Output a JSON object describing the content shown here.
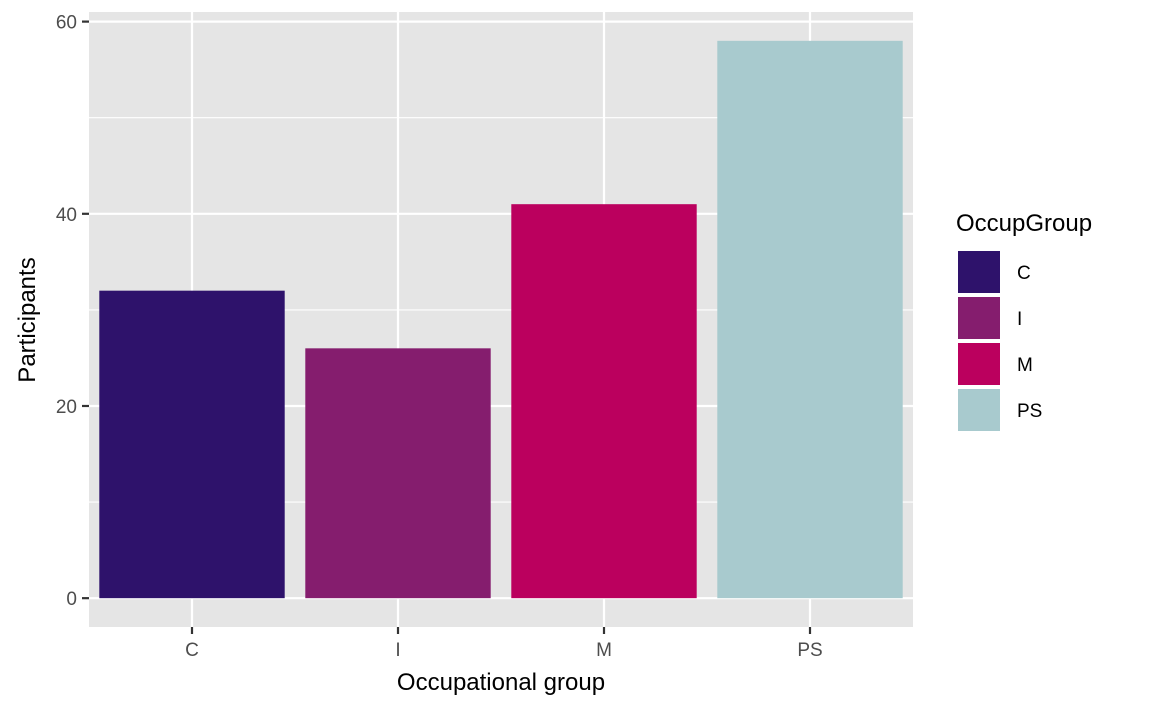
{
  "chart_data": {
    "type": "bar",
    "categories": [
      "C",
      "I",
      "M",
      "PS"
    ],
    "values": [
      32,
      26,
      41,
      58
    ],
    "colors": [
      "#2e126b",
      "#851d6e",
      "#bb005e",
      "#a8cace"
    ],
    "xlabel": "Occupational group",
    "ylabel": "Participants",
    "ylim": [
      -3,
      61
    ],
    "yticks": [
      0,
      20,
      40,
      60
    ],
    "grid": true,
    "legend": {
      "title": "OccupGroup",
      "position": "right",
      "items": [
        "C",
        "I",
        "M",
        "PS"
      ]
    },
    "panel_background": "#e5e5e5",
    "grid_color": "#ffffff"
  }
}
